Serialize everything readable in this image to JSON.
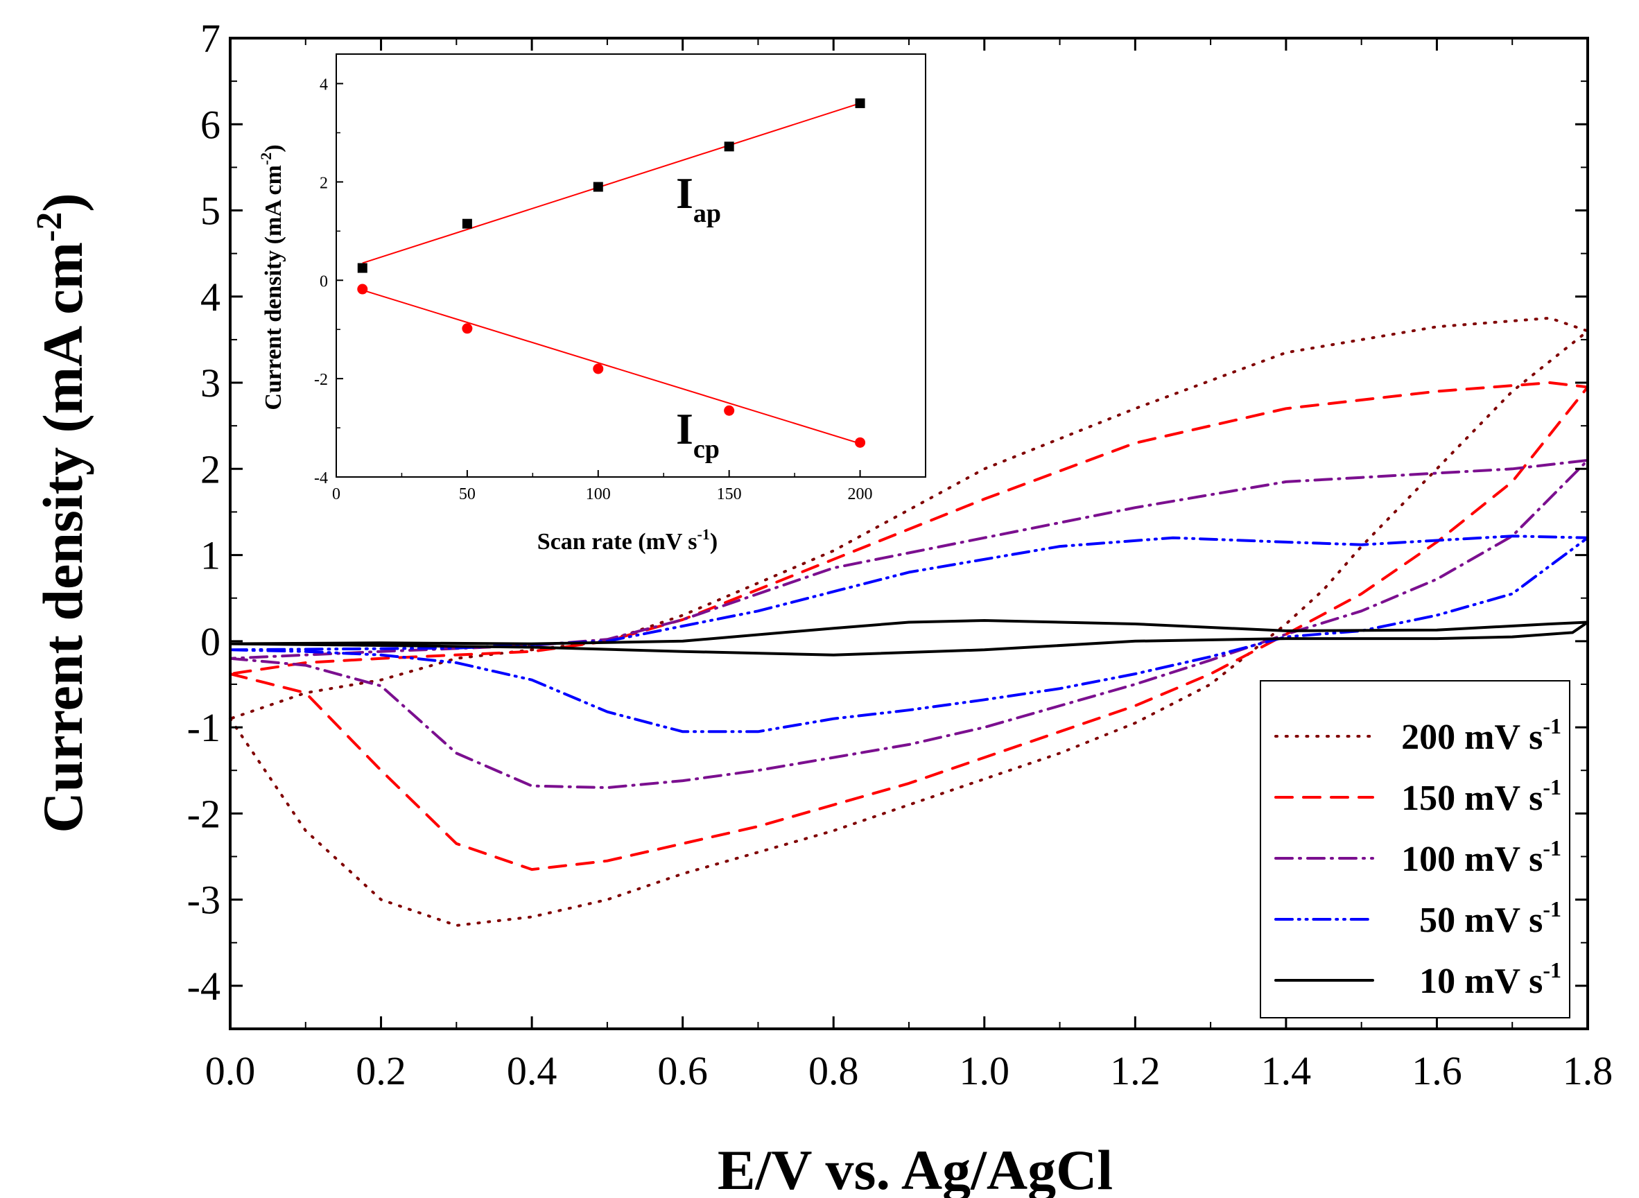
{
  "chart_data": [
    {
      "type": "line",
      "role": "main",
      "title": "",
      "xlabel": "E/V vs. Ag/AgCl",
      "ylabel": "Current density (mA cm-2)",
      "ylabel_parts": {
        "main": "Current density (mA cm",
        "sup": "-2",
        "close": ")"
      },
      "xlim": [
        0.0,
        1.8
      ],
      "ylim": [
        -4.5,
        7
      ],
      "x_ticks": [
        "0.0",
        "0.2",
        "0.4",
        "0.6",
        "0.8",
        "1.0",
        "1.2",
        "1.4",
        "1.6",
        "1.8"
      ],
      "y_ticks": [
        "-4",
        "-3",
        "-2",
        "-1",
        "0",
        "1",
        "2",
        "3",
        "4",
        "5",
        "6",
        "7"
      ],
      "legend_position": "bottom-right",
      "series": [
        {
          "name": "200 mV s-1",
          "label_main": "200 mV s",
          "label_sup": "-1",
          "color": "#800000",
          "dash": "dotted",
          "points": [
            [
              0.0,
              -0.9
            ],
            [
              0.1,
              -2.2
            ],
            [
              0.2,
              -3.0
            ],
            [
              0.3,
              -3.3
            ],
            [
              0.4,
              -3.2
            ],
            [
              0.5,
              -3.0
            ],
            [
              0.6,
              -2.7
            ],
            [
              0.7,
              -2.45
            ],
            [
              0.8,
              -2.2
            ],
            [
              0.9,
              -1.9
            ],
            [
              1.0,
              -1.6
            ],
            [
              1.1,
              -1.3
            ],
            [
              1.2,
              -0.95
            ],
            [
              1.3,
              -0.5
            ],
            [
              1.35,
              -0.15
            ],
            [
              1.4,
              0.2
            ],
            [
              1.45,
              0.6
            ],
            [
              1.5,
              1.1
            ],
            [
              1.6,
              2.0
            ],
            [
              1.7,
              2.9
            ],
            [
              1.8,
              3.6
            ],
            [
              1.75,
              3.75
            ],
            [
              1.6,
              3.65
            ],
            [
              1.4,
              3.35
            ],
            [
              1.2,
              2.7
            ],
            [
              1.0,
              2.0
            ],
            [
              0.8,
              1.05
            ],
            [
              0.6,
              0.3
            ],
            [
              0.5,
              0.0
            ],
            [
              0.4,
              -0.1
            ],
            [
              0.3,
              -0.2
            ],
            [
              0.2,
              -0.45
            ],
            [
              0.1,
              -0.6
            ],
            [
              0.0,
              -0.9
            ]
          ]
        },
        {
          "name": "150 mV s-1",
          "label_main": "150 mV s",
          "label_sup": "-1",
          "color": "#ff0000",
          "dash": "dashed",
          "points": [
            [
              0.0,
              -0.38
            ],
            [
              0.1,
              -0.6
            ],
            [
              0.2,
              -1.5
            ],
            [
              0.3,
              -2.35
            ],
            [
              0.4,
              -2.65
            ],
            [
              0.5,
              -2.55
            ],
            [
              0.6,
              -2.35
            ],
            [
              0.7,
              -2.15
            ],
            [
              0.8,
              -1.9
            ],
            [
              0.9,
              -1.65
            ],
            [
              1.0,
              -1.35
            ],
            [
              1.1,
              -1.05
            ],
            [
              1.2,
              -0.75
            ],
            [
              1.3,
              -0.38
            ],
            [
              1.4,
              0.08
            ],
            [
              1.5,
              0.55
            ],
            [
              1.6,
              1.15
            ],
            [
              1.7,
              1.85
            ],
            [
              1.8,
              2.95
            ],
            [
              1.75,
              3.0
            ],
            [
              1.6,
              2.9
            ],
            [
              1.4,
              2.7
            ],
            [
              1.2,
              2.3
            ],
            [
              1.0,
              1.65
            ],
            [
              0.8,
              0.95
            ],
            [
              0.6,
              0.25
            ],
            [
              0.5,
              0.0
            ],
            [
              0.4,
              -0.12
            ],
            [
              0.2,
              -0.2
            ],
            [
              0.1,
              -0.25
            ],
            [
              0.0,
              -0.38
            ]
          ]
        },
        {
          "name": "100 mV s-1",
          "label_main": "100 mV s",
          "label_sup": "-1",
          "color": "#7b0f8f",
          "dash": "dashdot",
          "points": [
            [
              0.0,
              -0.2
            ],
            [
              0.1,
              -0.28
            ],
            [
              0.2,
              -0.52
            ],
            [
              0.3,
              -1.3
            ],
            [
              0.4,
              -1.68
            ],
            [
              0.5,
              -1.7
            ],
            [
              0.6,
              -1.62
            ],
            [
              0.7,
              -1.5
            ],
            [
              0.8,
              -1.35
            ],
            [
              0.9,
              -1.2
            ],
            [
              1.0,
              -1.0
            ],
            [
              1.1,
              -0.75
            ],
            [
              1.2,
              -0.5
            ],
            [
              1.3,
              -0.22
            ],
            [
              1.4,
              0.08
            ],
            [
              1.5,
              0.35
            ],
            [
              1.6,
              0.72
            ],
            [
              1.7,
              1.22
            ],
            [
              1.8,
              2.1
            ],
            [
              1.7,
              2.0
            ],
            [
              1.5,
              1.9
            ],
            [
              1.4,
              1.85
            ],
            [
              1.2,
              1.55
            ],
            [
              1.0,
              1.2
            ],
            [
              0.8,
              0.85
            ],
            [
              0.6,
              0.25
            ],
            [
              0.5,
              0.02
            ],
            [
              0.4,
              -0.05
            ],
            [
              0.2,
              -0.12
            ],
            [
              0.0,
              -0.2
            ]
          ]
        },
        {
          "name": "50 mV s-1",
          "label_main": "50 mV s",
          "label_sup": "-1",
          "color": "#0000ff",
          "dash": "dashdotdot",
          "points": [
            [
              0.0,
              -0.1
            ],
            [
              0.1,
              -0.12
            ],
            [
              0.2,
              -0.16
            ],
            [
              0.3,
              -0.25
            ],
            [
              0.4,
              -0.45
            ],
            [
              0.5,
              -0.82
            ],
            [
              0.6,
              -1.05
            ],
            [
              0.7,
              -1.05
            ],
            [
              0.8,
              -0.9
            ],
            [
              0.9,
              -0.8
            ],
            [
              1.0,
              -0.68
            ],
            [
              1.1,
              -0.55
            ],
            [
              1.2,
              -0.38
            ],
            [
              1.3,
              -0.18
            ],
            [
              1.4,
              0.05
            ],
            [
              1.5,
              0.12
            ],
            [
              1.6,
              0.3
            ],
            [
              1.7,
              0.55
            ],
            [
              1.8,
              1.2
            ],
            [
              1.7,
              1.22
            ],
            [
              1.5,
              1.12
            ],
            [
              1.4,
              1.15
            ],
            [
              1.25,
              1.2
            ],
            [
              1.1,
              1.1
            ],
            [
              0.9,
              0.8
            ],
            [
              0.7,
              0.35
            ],
            [
              0.5,
              0.0
            ],
            [
              0.3,
              -0.08
            ],
            [
              0.0,
              -0.1
            ]
          ]
        },
        {
          "name": "10 mV s-1",
          "label_main": "10 mV s",
          "label_sup": "-1",
          "color": "#000000",
          "dash": "solid",
          "points": [
            [
              0.0,
              -0.03
            ],
            [
              0.2,
              -0.05
            ],
            [
              0.4,
              -0.07
            ],
            [
              0.6,
              -0.12
            ],
            [
              0.8,
              -0.16
            ],
            [
              1.0,
              -0.1
            ],
            [
              1.2,
              0.0
            ],
            [
              1.4,
              0.03
            ],
            [
              1.6,
              0.03
            ],
            [
              1.7,
              0.05
            ],
            [
              1.78,
              0.1
            ],
            [
              1.8,
              0.22
            ],
            [
              1.75,
              0.2
            ],
            [
              1.6,
              0.13
            ],
            [
              1.4,
              0.12
            ],
            [
              1.2,
              0.2
            ],
            [
              1.0,
              0.24
            ],
            [
              0.9,
              0.22
            ],
            [
              0.8,
              0.15
            ],
            [
              0.6,
              0.0
            ],
            [
              0.4,
              -0.03
            ],
            [
              0.2,
              -0.02
            ],
            [
              0.0,
              -0.03
            ]
          ]
        }
      ]
    },
    {
      "type": "scatter",
      "role": "inset",
      "title": "",
      "xlabel": "Scan rate (mV s-1)",
      "xlabel_parts": {
        "main": "Scan rate (mV s",
        "sup": "-1",
        "close": ")"
      },
      "ylabel": "Current density (mA cm-2)",
      "ylabel_parts": {
        "main": "Current density (mA cm",
        "sup": "-2",
        "close": ")"
      },
      "xlim": [
        0,
        225
      ],
      "ylim": [
        -4,
        4.6
      ],
      "x_ticks": [
        "0",
        "50",
        "100",
        "150",
        "200"
      ],
      "y_ticks": [
        "-4",
        "-2",
        "0",
        "2",
        "4"
      ],
      "fit_color": "#ff0000",
      "series": [
        {
          "name": "Iap",
          "label_main": "I",
          "label_sub": "ap",
          "color": "#000000",
          "marker": "square",
          "x": [
            10,
            50,
            100,
            150,
            200
          ],
          "y": [
            0.25,
            1.15,
            1.9,
            2.72,
            3.6
          ],
          "fit": [
            [
              10,
              0.35
            ],
            [
              200,
              3.6
            ]
          ]
        },
        {
          "name": "Icp",
          "label_main": "I",
          "label_sub": "cp",
          "color": "#ff0000",
          "marker": "circle",
          "x": [
            10,
            50,
            100,
            150,
            200
          ],
          "y": [
            -0.18,
            -0.98,
            -1.8,
            -2.65,
            -3.3
          ],
          "fit": [
            [
              10,
              -0.2
            ],
            [
              200,
              -3.32
            ]
          ]
        }
      ]
    }
  ]
}
